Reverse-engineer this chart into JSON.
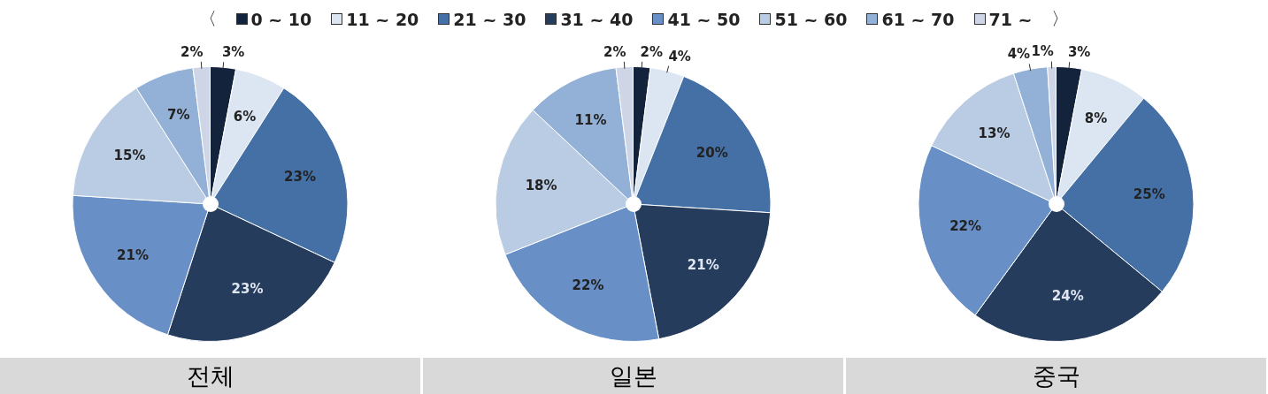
{
  "chart_data": [
    {
      "type": "pie",
      "title": "전체",
      "legend": "top",
      "annotations": [
        "〈",
        "〉"
      ],
      "categories": [
        "0 ~ 10",
        "11 ~ 20",
        "21 ~ 30",
        "31 ~ 40",
        "41 ~ 50",
        "51 ~ 60",
        "61 ~ 70",
        "71 ~"
      ],
      "values": [
        3,
        6,
        23,
        23,
        21,
        15,
        7,
        2
      ],
      "value_labels": [
        "3%",
        "6%",
        "23%",
        "23%",
        "21%",
        "15%",
        "7%",
        "2%"
      ],
      "colors": [
        "#14233c",
        "#dce6f2",
        "#4470a6",
        "#253c5c",
        "#6890c6",
        "#b9cce4",
        "#93b1d6",
        "#cdd5e6"
      ]
    },
    {
      "type": "pie",
      "title": "일본",
      "categories": [
        null,
        null,
        null,
        null,
        null,
        null,
        null,
        null
      ],
      "values": [
        2,
        4,
        20,
        21,
        22,
        18,
        11,
        2
      ],
      "value_labels": [
        "2%",
        "4%",
        "20%",
        "21%",
        "22%",
        "18%",
        "11%",
        "2%"
      ],
      "colors": [
        "#14233c",
        "#dce6f2",
        "#4470a6",
        "#253c5c",
        "#6890c6",
        "#b9cce4",
        "#93b1d6",
        "#cdd5e6"
      ]
    },
    {
      "type": "pie",
      "title": "중국",
      "categories": [
        null,
        null,
        null,
        null,
        null,
        null,
        null,
        null
      ],
      "values": [
        3,
        8,
        25,
        24,
        22,
        13,
        4,
        1
      ],
      "value_labels": [
        "3%",
        "8%",
        "25%",
        "24%",
        "22%",
        "13%",
        "4%",
        "1%"
      ],
      "colors": [
        "#14233c",
        "#dce6f2",
        "#4470a6",
        "#253c5c",
        "#6890c6",
        "#b9cce4",
        "#93b1d6",
        "#cdd5e6"
      ]
    }
  ]
}
